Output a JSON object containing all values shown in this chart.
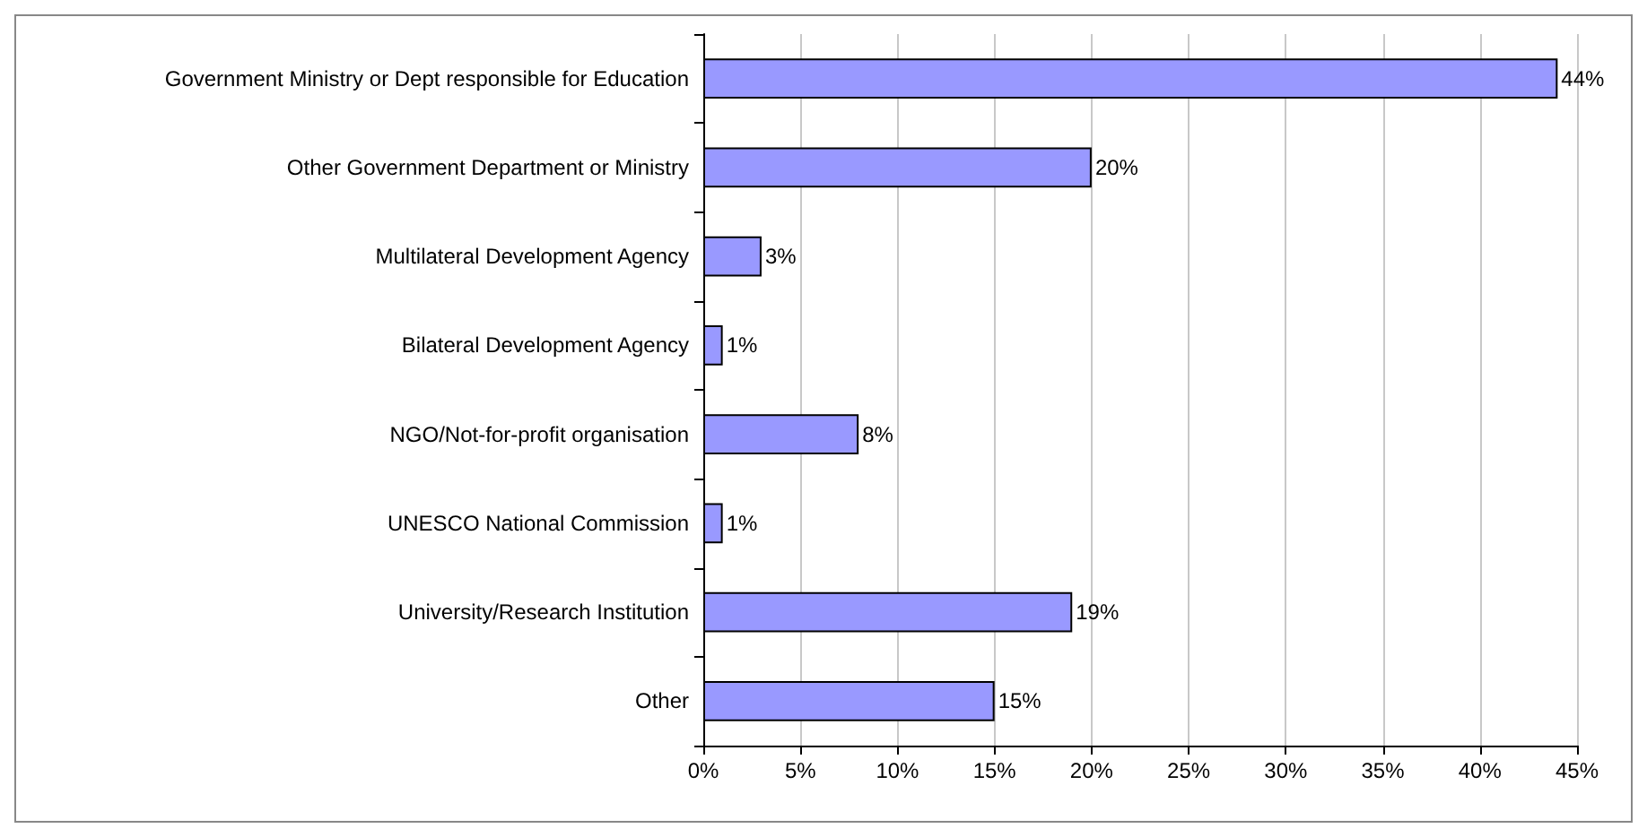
{
  "chart_data": {
    "type": "bar",
    "orientation": "horizontal",
    "categories": [
      "Government Ministry or Dept responsible for Education",
      "Other Government Department or Ministry",
      "Multilateral Development Agency",
      "Bilateral Development Agency",
      "NGO/Not-for-profit organisation",
      "UNESCO National Commission",
      "University/Research Institution",
      "Other"
    ],
    "values": [
      44,
      20,
      3,
      1,
      8,
      1,
      19,
      15
    ],
    "value_labels": [
      "44%",
      "20%",
      "3%",
      "1%",
      "8%",
      "1%",
      "19%",
      "15%"
    ],
    "color": "#9999ff",
    "xlim": [
      0,
      45
    ],
    "xticks": [
      {
        "value": 0,
        "label": "0%"
      },
      {
        "value": 5,
        "label": "5%"
      },
      {
        "value": 10,
        "label": "10%"
      },
      {
        "value": 15,
        "label": "15%"
      },
      {
        "value": 20,
        "label": "20%"
      },
      {
        "value": 25,
        "label": "25%"
      },
      {
        "value": 30,
        "label": "30%"
      },
      {
        "value": 35,
        "label": "35%"
      },
      {
        "value": 40,
        "label": "40%"
      },
      {
        "value": 45,
        "label": "45%"
      }
    ],
    "grid": "x"
  }
}
